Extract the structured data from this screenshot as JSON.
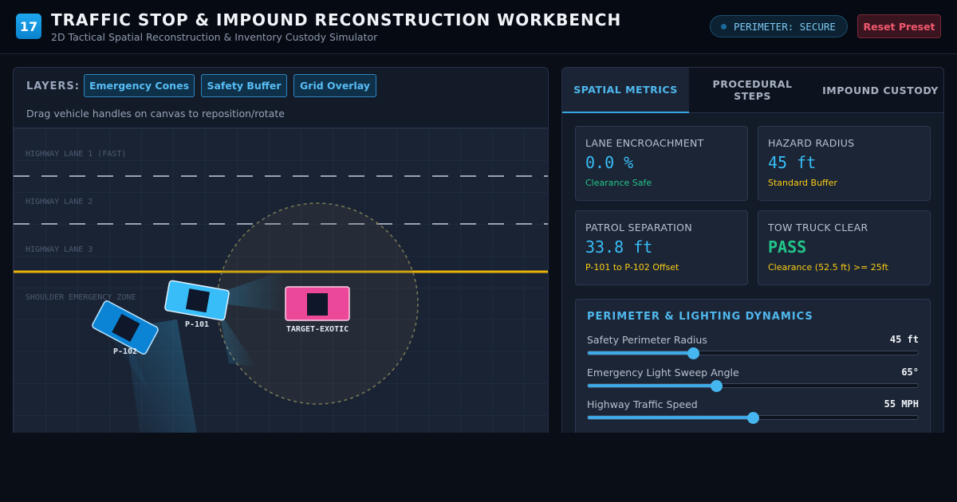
{
  "header": {
    "logo_number": "17",
    "title": "TRAFFIC STOP & IMPOUND RECONSTRUCTION WORKBENCH",
    "subtitle": "2D Tactical Spatial Reconstruction & Inventory Custody Simulator",
    "perimeter_status": "PERIMETER: SECURE",
    "reset_label": "Reset Preset"
  },
  "layers": {
    "label": "LAYERS:",
    "buttons": [
      "Emergency Cones",
      "Safety Buffer",
      "Grid Overlay"
    ],
    "hint": "Drag vehicle handles on canvas to reposition/rotate"
  },
  "canvas": {
    "lanes": [
      "HIGHWAY LANE 1 (FAST)",
      "HIGHWAY LANE 2",
      "HIGHWAY LANE 3",
      "SHOULDER EMERGENCY ZONE"
    ],
    "vehicles": [
      {
        "id": "P-101",
        "color": "#38bdf8"
      },
      {
        "id": "P-102",
        "color": "#0b84d6"
      },
      {
        "id": "TARGET-EXOTIC",
        "color": "#ec4899"
      }
    ]
  },
  "tabs": [
    {
      "label": "SPATIAL METRICS",
      "active": true
    },
    {
      "label": "PROCEDURAL STEPS",
      "active": false
    },
    {
      "label": "IMPOUND CUSTODY",
      "active": false
    }
  ],
  "metrics": [
    {
      "label": "LANE ENCROACHMENT",
      "value": "0.0 %",
      "note": "Clearance Safe",
      "value_color": "#38bdf8",
      "note_color": "#22c58b"
    },
    {
      "label": "HAZARD RADIUS",
      "value": "45 ft",
      "note": "Standard Buffer",
      "value_color": "#38bdf8",
      "note_color": "#facc15"
    },
    {
      "label": "PATROL SEPARATION",
      "value": "33.8 ft",
      "note": "P-101 to P-102 Offset",
      "value_color": "#38bdf8",
      "note_color": "#facc15"
    },
    {
      "label": "TOW TRUCK CLEAR",
      "value": "PASS",
      "note": "Clearance (52.5 ft) >= 25ft",
      "value_color": "#22c58b",
      "note_color": "#facc15"
    }
  ],
  "dynamics": {
    "title": "PERIMETER & LIGHTING DYNAMICS",
    "sliders": [
      {
        "label": "Safety Perimeter Radius",
        "value": "45 ft",
        "fraction": 0.32
      },
      {
        "label": "Emergency Light Sweep Angle",
        "value": "65°",
        "fraction": 0.39
      },
      {
        "label": "Highway Traffic Speed",
        "value": "55 MPH",
        "fraction": 0.5
      }
    ]
  }
}
